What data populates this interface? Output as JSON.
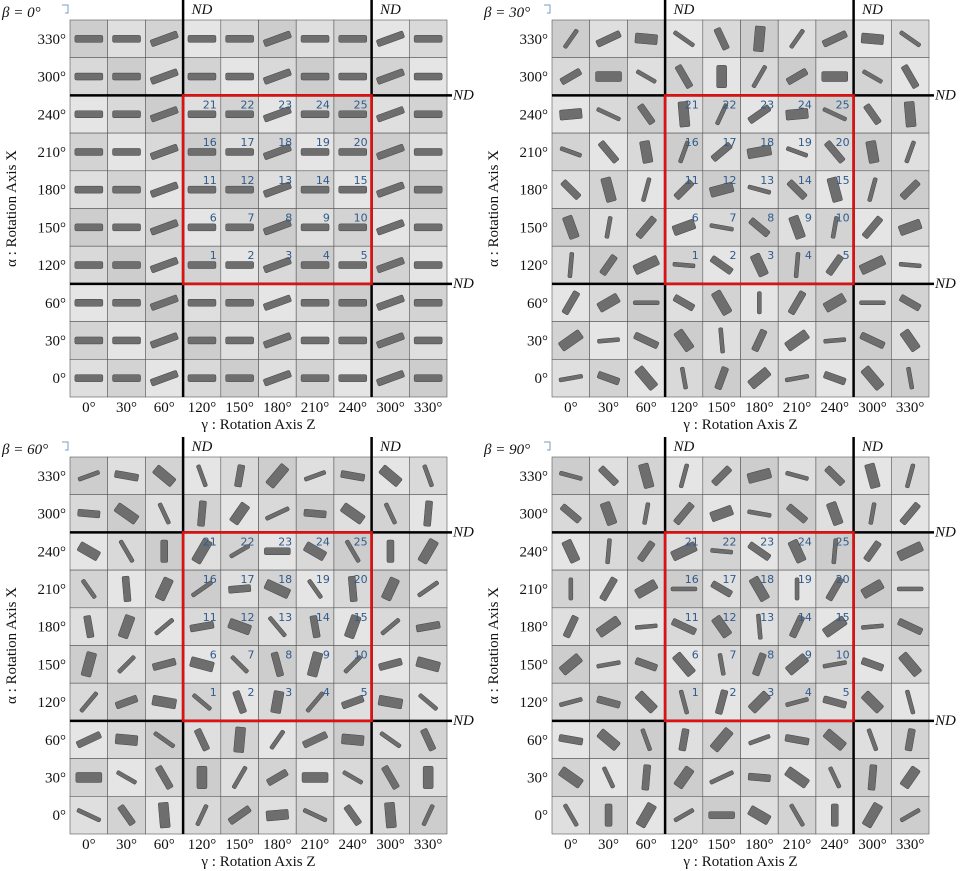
{
  "panels": [
    {
      "beta_label": "β = 0°",
      "nd_labels": [
        "ND",
        "ND",
        "ND",
        "ND"
      ],
      "x_ticks": [
        "0°",
        "30°",
        "60°",
        "120°",
        "150°",
        "180°",
        "210°",
        "240°",
        "300°",
        "330°"
      ],
      "y_ticks": [
        "330°",
        "300°",
        "240°",
        "210°",
        "180°",
        "150°",
        "120°",
        "60°",
        "30°",
        "0°"
      ],
      "x_axis_title": "γ : Rotation Axis Z",
      "y_axis_title": "α : Rotation Axis X",
      "cell_numbers": [
        1,
        2,
        3,
        4,
        5,
        6,
        7,
        8,
        9,
        10,
        11,
        12,
        13,
        14,
        15,
        16,
        17,
        18,
        19,
        20,
        21,
        22,
        23,
        24,
        25
      ]
    },
    {
      "beta_label": "β = 30°",
      "nd_labels": [
        "ND",
        "ND",
        "ND",
        "ND"
      ],
      "x_ticks": [
        "0°",
        "30°",
        "60°",
        "120°",
        "150°",
        "180°",
        "210°",
        "240°",
        "300°",
        "330°"
      ],
      "y_ticks": [
        "330°",
        "300°",
        "240°",
        "210°",
        "180°",
        "150°",
        "120°",
        "60°",
        "30°",
        "0°"
      ],
      "x_axis_title": "γ : Rotation Axis Z",
      "y_axis_title": "α : Rotation Axis X",
      "cell_numbers": [
        1,
        2,
        3,
        4,
        5,
        6,
        7,
        8,
        9,
        10,
        11,
        12,
        13,
        14,
        15,
        16,
        17,
        18,
        19,
        20,
        21,
        22,
        23,
        24,
        25
      ]
    },
    {
      "beta_label": "β = 60°",
      "nd_labels": [
        "ND",
        "ND",
        "ND",
        "ND"
      ],
      "x_ticks": [
        "0°",
        "30°",
        "60°",
        "120°",
        "150°",
        "180°",
        "210°",
        "240°",
        "300°",
        "330°"
      ],
      "y_ticks": [
        "330°",
        "300°",
        "240°",
        "210°",
        "180°",
        "150°",
        "120°",
        "60°",
        "30°",
        "0°"
      ],
      "x_axis_title": "γ : Rotation Axis Z",
      "y_axis_title": "α : Rotation Axis X",
      "cell_numbers": [
        1,
        2,
        3,
        4,
        5,
        6,
        7,
        8,
        9,
        10,
        11,
        12,
        13,
        14,
        15,
        16,
        17,
        18,
        19,
        20,
        21,
        22,
        23,
        24,
        25
      ]
    },
    {
      "beta_label": "β = 90°",
      "nd_labels": [
        "ND",
        "ND",
        "ND",
        "ND"
      ],
      "x_ticks": [
        "0°",
        "30°",
        "60°",
        "120°",
        "150°",
        "180°",
        "210°",
        "240°",
        "300°",
        "330°"
      ],
      "y_ticks": [
        "330°",
        "300°",
        "240°",
        "210°",
        "180°",
        "150°",
        "120°",
        "60°",
        "30°",
        "0°"
      ],
      "x_axis_title": "γ : Rotation Axis Z",
      "y_axis_title": "α : Rotation Axis X",
      "cell_numbers": [
        1,
        2,
        3,
        4,
        5,
        6,
        7,
        8,
        9,
        10,
        11,
        12,
        13,
        14,
        15,
        16,
        17,
        18,
        19,
        20,
        21,
        22,
        23,
        24,
        25
      ]
    }
  ]
}
